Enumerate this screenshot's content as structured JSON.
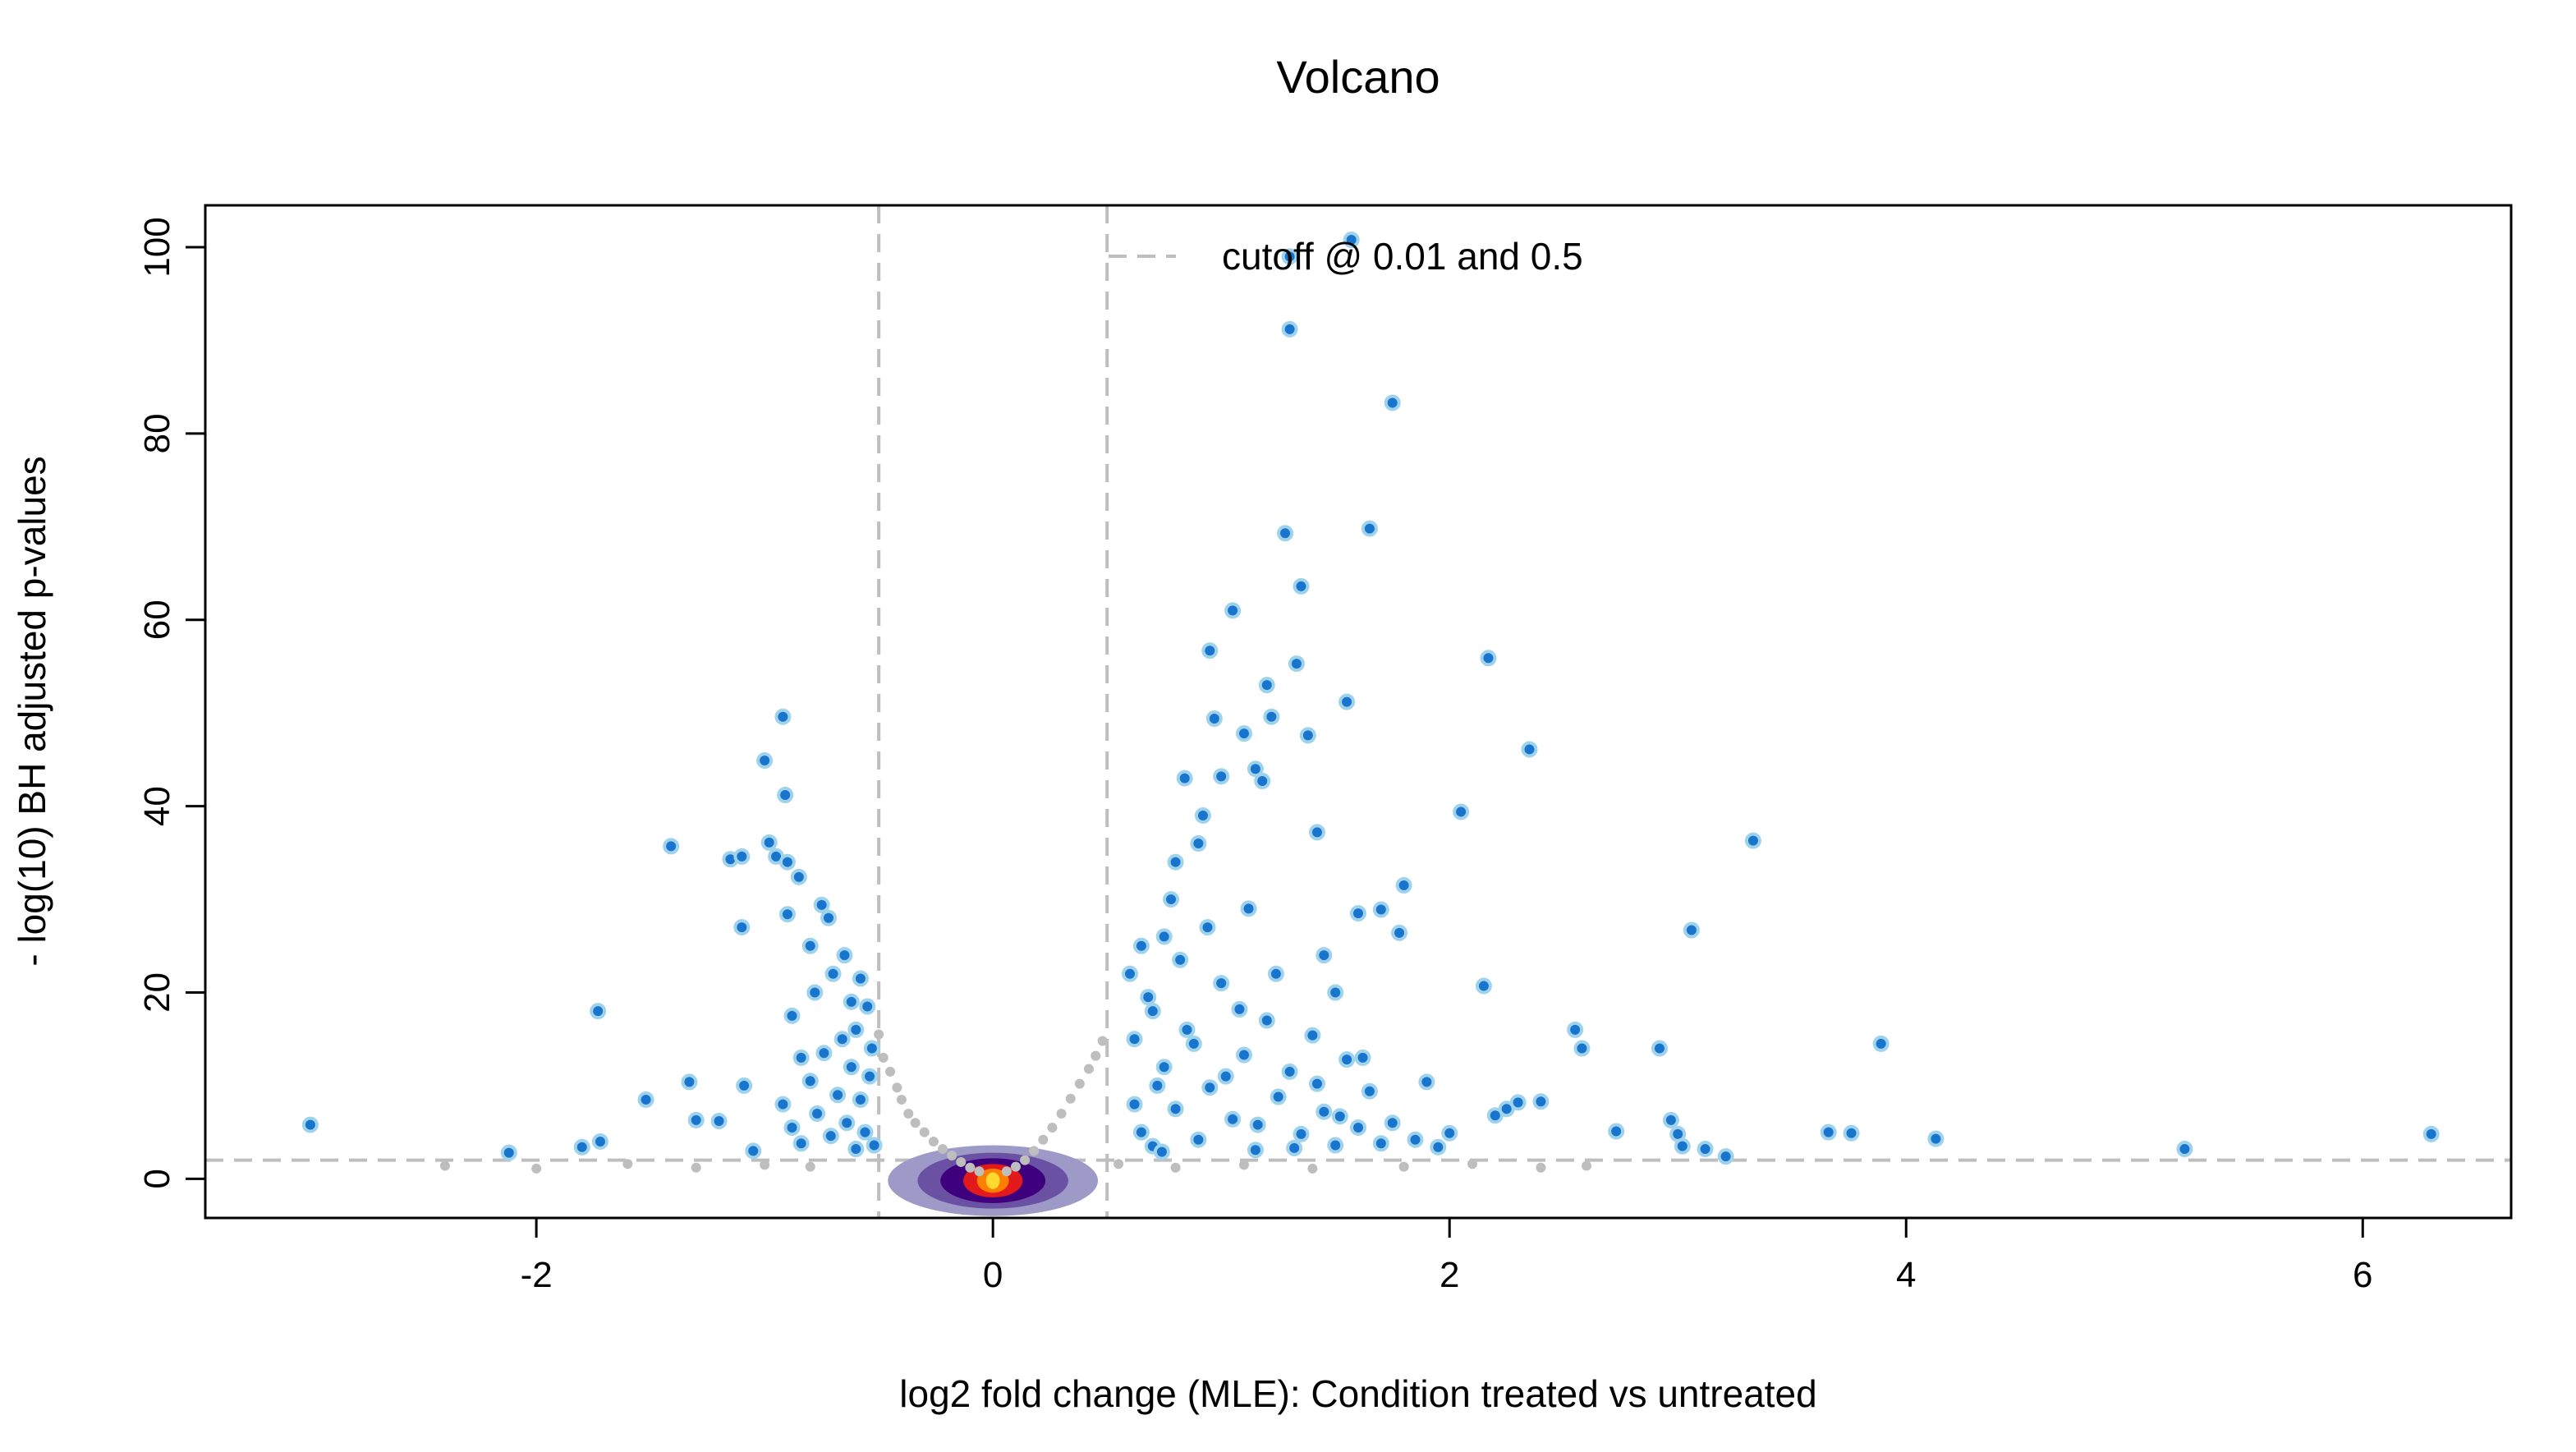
{
  "chart_data": {
    "type": "scatter",
    "title": "Volcano",
    "xlabel": "log2 fold change (MLE): Condition treated vs untreated",
    "ylabel": "- log(10) BH adjusted p-values",
    "xlim": [
      -3.45,
      6.65
    ],
    "ylim": [
      -4.2,
      104.5
    ],
    "x_ticks": [
      -2,
      0,
      2,
      4,
      6
    ],
    "y_ticks": [
      0,
      20,
      40,
      60,
      80,
      100
    ],
    "grid": false,
    "legend": {
      "position": "top",
      "label": "cutoff @ 0.01 and 0.5"
    },
    "cutoffs": {
      "padj": 0.01,
      "neg_log10_padj": 2,
      "log2fc": 0.5
    },
    "colors": {
      "significant_fill": "#1874CD",
      "significant_outline": "#9FD3EC",
      "nonsignificant": "#BEBEBE",
      "cutoff_line": "#BEBEBE",
      "density": [
        "#9E9AC8",
        "#6A51A3",
        "#3F007D",
        "#E31A1C",
        "#FF7F00",
        "#FFD92F"
      ]
    },
    "series": [
      {
        "name": "significant",
        "points": [
          [
            -2.99,
            5.8
          ],
          [
            -2.12,
            2.8
          ],
          [
            -1.8,
            3.4
          ],
          [
            -1.73,
            18.0
          ],
          [
            -1.72,
            4.0
          ],
          [
            -1.52,
            8.5
          ],
          [
            -1.41,
            35.7
          ],
          [
            -1.33,
            10.4
          ],
          [
            -1.3,
            6.3
          ],
          [
            -1.2,
            6.2
          ],
          [
            -1.15,
            34.3
          ],
          [
            -1.1,
            27.0
          ],
          [
            -1.1,
            34.6
          ],
          [
            -1.09,
            10.0
          ],
          [
            -1.05,
            3.0
          ],
          [
            -1.0,
            44.9
          ],
          [
            -0.98,
            36.1
          ],
          [
            -0.95,
            34.6
          ],
          [
            -0.92,
            49.6
          ],
          [
            -0.91,
            41.2
          ],
          [
            -0.9,
            34.0
          ],
          [
            -0.9,
            28.4
          ],
          [
            -0.88,
            17.5
          ],
          [
            -0.85,
            32.4
          ],
          [
            -0.84,
            13.0
          ],
          [
            -0.8,
            25.0
          ],
          [
            -0.78,
            20.0
          ],
          [
            -0.75,
            29.4
          ],
          [
            -0.72,
            28.0
          ],
          [
            -0.7,
            22.0
          ],
          [
            -0.65,
            24.0
          ],
          [
            -0.62,
            19.0
          ],
          [
            -0.6,
            16.0
          ],
          [
            -0.58,
            21.5
          ],
          [
            -0.55,
            18.5
          ],
          [
            -0.92,
            8.0
          ],
          [
            -0.88,
            5.5
          ],
          [
            -0.84,
            3.8
          ],
          [
            -0.8,
            10.5
          ],
          [
            -0.77,
            7.0
          ],
          [
            -0.74,
            13.5
          ],
          [
            -0.71,
            4.6
          ],
          [
            -0.68,
            9.0
          ],
          [
            -0.66,
            15.0
          ],
          [
            -0.64,
            6.0
          ],
          [
            -0.62,
            12.0
          ],
          [
            -0.6,
            3.2
          ],
          [
            -0.58,
            8.5
          ],
          [
            -0.56,
            5.0
          ],
          [
            -0.54,
            11.0
          ],
          [
            -0.53,
            14.0
          ],
          [
            -0.52,
            3.6
          ],
          [
            0.6,
            22.0
          ],
          [
            0.62,
            15.0
          ],
          [
            0.65,
            25.0
          ],
          [
            0.7,
            18.0
          ],
          [
            0.72,
            10.0
          ],
          [
            0.75,
            26.0
          ],
          [
            0.78,
            30.0
          ],
          [
            0.8,
            34.0
          ],
          [
            0.84,
            43.0
          ],
          [
            0.9,
            36.0
          ],
          [
            0.92,
            39.0
          ],
          [
            0.95,
            56.7
          ],
          [
            0.97,
            49.4
          ],
          [
            1.0,
            43.2
          ],
          [
            1.05,
            61.0
          ],
          [
            1.1,
            47.8
          ],
          [
            1.12,
            29.0
          ],
          [
            1.15,
            44.0
          ],
          [
            1.18,
            42.7
          ],
          [
            1.2,
            53.0
          ],
          [
            1.22,
            49.6
          ],
          [
            1.28,
            69.3
          ],
          [
            1.3,
            99.0
          ],
          [
            1.3,
            91.2
          ],
          [
            1.33,
            55.3
          ],
          [
            1.35,
            63.6
          ],
          [
            1.38,
            47.6
          ],
          [
            1.42,
            37.2
          ],
          [
            1.45,
            24.0
          ],
          [
            1.5,
            20.0
          ],
          [
            1.55,
            51.2
          ],
          [
            1.57,
            100.8
          ],
          [
            1.6,
            28.5
          ],
          [
            1.65,
            69.8
          ],
          [
            1.7,
            28.9
          ],
          [
            1.75,
            83.3
          ],
          [
            1.78,
            26.4
          ],
          [
            1.8,
            31.5
          ],
          [
            1.9,
            10.4
          ],
          [
            2.05,
            39.4
          ],
          [
            2.15,
            20.7
          ],
          [
            2.17,
            55.9
          ],
          [
            2.2,
            6.8
          ],
          [
            2.25,
            7.5
          ],
          [
            2.3,
            8.2
          ],
          [
            2.35,
            46.1
          ],
          [
            2.4,
            8.3
          ],
          [
            2.55,
            16.0
          ],
          [
            2.58,
            14.0
          ],
          [
            2.73,
            5.1
          ],
          [
            2.92,
            14.0
          ],
          [
            2.97,
            6.3
          ],
          [
            3.0,
            4.8
          ],
          [
            3.02,
            3.5
          ],
          [
            3.06,
            26.7
          ],
          [
            3.12,
            3.2
          ],
          [
            3.21,
            2.4
          ],
          [
            3.33,
            36.3
          ],
          [
            3.66,
            5.0
          ],
          [
            3.76,
            4.9
          ],
          [
            3.89,
            14.5
          ],
          [
            4.13,
            4.3
          ],
          [
            5.22,
            3.2
          ],
          [
            6.3,
            4.8
          ],
          [
            0.65,
            5.0
          ],
          [
            0.7,
            3.5
          ],
          [
            0.75,
            12.0
          ],
          [
            0.8,
            7.5
          ],
          [
            0.85,
            16.0
          ],
          [
            0.9,
            4.2
          ],
          [
            0.95,
            9.8
          ],
          [
            1.0,
            21.0
          ],
          [
            1.05,
            6.4
          ],
          [
            1.1,
            13.3
          ],
          [
            1.15,
            3.1
          ],
          [
            1.2,
            17.0
          ],
          [
            1.25,
            8.8
          ],
          [
            1.3,
            11.5
          ],
          [
            1.35,
            4.8
          ],
          [
            1.4,
            15.4
          ],
          [
            1.45,
            7.2
          ],
          [
            1.5,
            3.6
          ],
          [
            1.55,
            12.8
          ],
          [
            1.6,
            5.5
          ],
          [
            1.65,
            9.4
          ],
          [
            1.7,
            3.8
          ],
          [
            1.75,
            6.0
          ],
          [
            1.85,
            4.2
          ],
          [
            1.95,
            3.4
          ],
          [
            2.0,
            4.9
          ],
          [
            0.62,
            8.0
          ],
          [
            0.68,
            19.5
          ],
          [
            0.74,
            2.9
          ],
          [
            0.82,
            23.5
          ],
          [
            0.88,
            14.5
          ],
          [
            0.94,
            27.0
          ],
          [
            1.02,
            11.0
          ],
          [
            1.08,
            18.2
          ],
          [
            1.16,
            5.8
          ],
          [
            1.24,
            22.0
          ],
          [
            1.32,
            3.3
          ],
          [
            1.42,
            10.2
          ],
          [
            1.52,
            6.7
          ],
          [
            1.62,
            13.0
          ]
        ]
      },
      {
        "name": "nonsignificant",
        "points": [
          [
            -2.4,
            1.4
          ],
          [
            -2.0,
            1.1
          ],
          [
            -1.6,
            1.6
          ],
          [
            -1.3,
            1.2
          ],
          [
            -1.0,
            1.5
          ],
          [
            -0.8,
            1.3
          ],
          [
            -0.5,
            15.5
          ],
          [
            -0.48,
            13.0
          ],
          [
            -0.45,
            11.5
          ],
          [
            -0.42,
            9.8
          ],
          [
            -0.4,
            8.5
          ],
          [
            -0.37,
            7.0
          ],
          [
            -0.34,
            6.0
          ],
          [
            -0.3,
            5.0
          ],
          [
            -0.26,
            4.0
          ],
          [
            -0.22,
            3.2
          ],
          [
            -0.18,
            2.5
          ],
          [
            -0.14,
            1.8
          ],
          [
            -0.1,
            1.2
          ],
          [
            -0.06,
            0.8
          ],
          [
            0.06,
            0.8
          ],
          [
            0.1,
            1.3
          ],
          [
            0.14,
            2.0
          ],
          [
            0.18,
            3.0
          ],
          [
            0.22,
            4.2
          ],
          [
            0.26,
            5.5
          ],
          [
            0.3,
            7.0
          ],
          [
            0.34,
            8.6
          ],
          [
            0.38,
            10.2
          ],
          [
            0.42,
            11.8
          ],
          [
            0.45,
            13.2
          ],
          [
            0.48,
            14.8
          ],
          [
            0.55,
            1.6
          ],
          [
            0.8,
            1.2
          ],
          [
            1.1,
            1.5
          ],
          [
            1.4,
            1.1
          ],
          [
            1.8,
            1.3
          ],
          [
            2.1,
            1.6
          ],
          [
            2.4,
            1.2
          ],
          [
            2.6,
            1.4
          ]
        ]
      }
    ]
  }
}
